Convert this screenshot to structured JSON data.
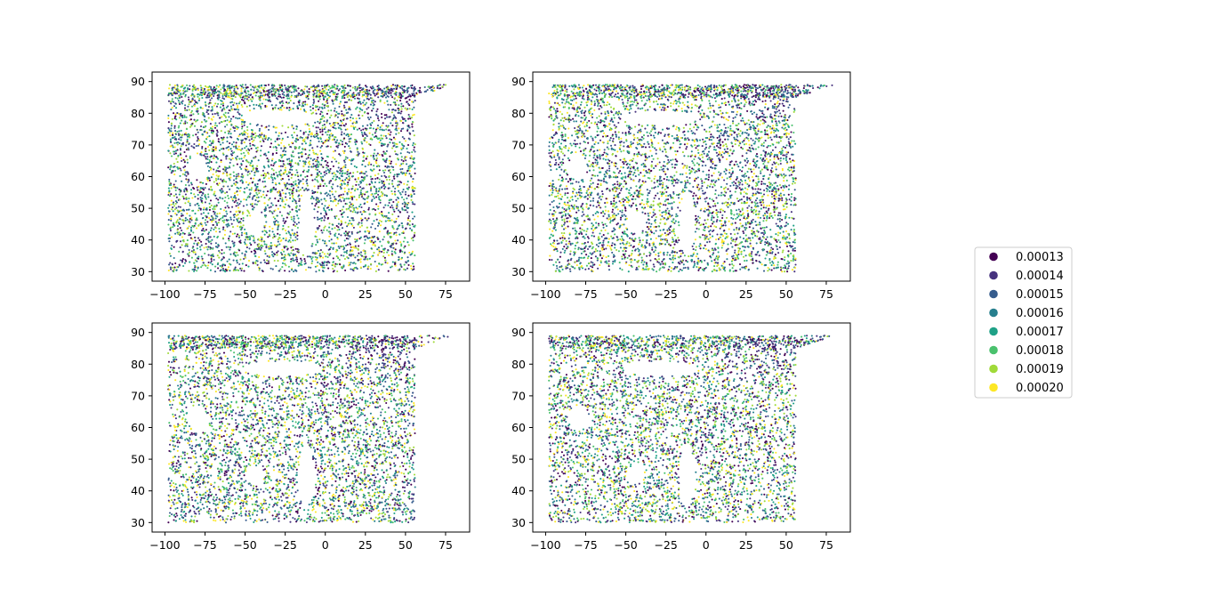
{
  "chart_data": [
    {
      "type": "scatter",
      "panel": "top-left",
      "xlim": [
        -108,
        90
      ],
      "ylim": [
        27,
        93
      ],
      "x_ticks": [
        -100,
        -75,
        -50,
        -25,
        0,
        25,
        50,
        75
      ],
      "y_ticks": [
        30,
        40,
        50,
        60,
        70,
        80,
        90
      ],
      "x_tick_labels": [
        "−100",
        "−75",
        "−50",
        "−25",
        "0",
        "25",
        "50",
        "75"
      ],
      "y_tick_labels": [
        "30",
        "40",
        "50",
        "60",
        "70",
        "80",
        "90"
      ],
      "grid": false,
      "domain": {
        "lon": [
          -98,
          56
        ],
        "lat": [
          30,
          89
        ],
        "top_strip_lat": [
          85,
          89
        ],
        "top_strip_lon_max": 80
      },
      "seed": 11
    },
    {
      "type": "scatter",
      "panel": "top-right",
      "xlim": [
        -108,
        90
      ],
      "ylim": [
        27,
        93
      ],
      "x_ticks": [
        -100,
        -75,
        -50,
        -25,
        0,
        25,
        50,
        75
      ],
      "y_ticks": [
        30,
        40,
        50,
        60,
        70,
        80,
        90
      ],
      "x_tick_labels": [
        "−100",
        "−75",
        "−50",
        "−25",
        "0",
        "25",
        "50",
        "75"
      ],
      "y_tick_labels": [
        "30",
        "40",
        "50",
        "60",
        "70",
        "80",
        "90"
      ],
      "grid": false,
      "domain": {
        "lon": [
          -98,
          56
        ],
        "lat": [
          30,
          89
        ],
        "top_strip_lat": [
          85,
          89
        ],
        "top_strip_lon_max": 80
      },
      "seed": 23
    },
    {
      "type": "scatter",
      "panel": "bottom-left",
      "xlim": [
        -108,
        90
      ],
      "ylim": [
        27,
        93
      ],
      "x_ticks": [
        -100,
        -75,
        -50,
        -25,
        0,
        25,
        50,
        75
      ],
      "y_ticks": [
        30,
        40,
        50,
        60,
        70,
        80,
        90
      ],
      "x_tick_labels": [
        "−100",
        "−75",
        "−50",
        "−25",
        "0",
        "25",
        "50",
        "75"
      ],
      "y_tick_labels": [
        "30",
        "40",
        "50",
        "60",
        "70",
        "80",
        "90"
      ],
      "grid": false,
      "domain": {
        "lon": [
          -98,
          56
        ],
        "lat": [
          30,
          89
        ],
        "top_strip_lat": [
          85,
          89
        ],
        "top_strip_lon_max": 80
      },
      "seed": 37
    },
    {
      "type": "scatter",
      "panel": "bottom-right",
      "xlim": [
        -108,
        90
      ],
      "ylim": [
        27,
        93
      ],
      "x_ticks": [
        -100,
        -75,
        -50,
        -25,
        0,
        25,
        50,
        75
      ],
      "y_ticks": [
        30,
        40,
        50,
        60,
        70,
        80,
        90
      ],
      "x_tick_labels": [
        "−100",
        "−75",
        "−50",
        "−25",
        "0",
        "25",
        "50",
        "75"
      ],
      "y_tick_labels": [
        "30",
        "40",
        "50",
        "60",
        "70",
        "80",
        "90"
      ],
      "grid": false,
      "domain": {
        "lon": [
          -98,
          56
        ],
        "lat": [
          30,
          89
        ],
        "top_strip_lat": [
          85,
          89
        ],
        "top_strip_lon_max": 80
      },
      "seed": 53
    }
  ],
  "legend": {
    "placement": "right",
    "entries": [
      {
        "label": "0.00013",
        "color": "#440154"
      },
      {
        "label": "0.00014",
        "color": "#46327e"
      },
      {
        "label": "0.00015",
        "color": "#365c8d"
      },
      {
        "label": "0.00016",
        "color": "#277f8e"
      },
      {
        "label": "0.00017",
        "color": "#1fa187"
      },
      {
        "label": "0.00018",
        "color": "#4ac16d"
      },
      {
        "label": "0.00019",
        "color": "#a0da39"
      },
      {
        "label": "0.00020",
        "color": "#fde725"
      }
    ]
  },
  "colormap": "viridis"
}
